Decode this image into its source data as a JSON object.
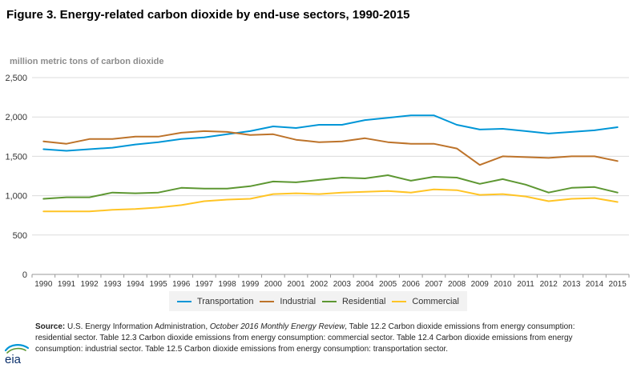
{
  "header": {
    "title": "Figure 3. Energy-related carbon dioxide by end-use sectors, 1990-2015",
    "unit_label": "million metric tons of carbon dioxide"
  },
  "source": {
    "label": "Source:",
    "text_a": " U.S. Energy Information Administration, ",
    "text_italic": "October 2016 Monthly Energy Review",
    "text_b": ", Table 12.2 Carbon dioxide emissions from energy consumption: residential sector. Table 12.3 Carbon dioxide emissions from energy consumption: commercial sector. Table 12.4 Carbon dioxide emissions from energy consumption: industrial sector. Table 12.5 Carbon dioxide emissions from energy consumption: transportation sector."
  },
  "logo": {
    "text": "eia"
  },
  "chart_data": {
    "type": "line",
    "title": "Figure 3. Energy-related carbon dioxide by end-use sectors, 1990-2015",
    "ylabel": "million metric tons of carbon dioxide",
    "xlabel": "",
    "ylim": [
      0,
      2500
    ],
    "yticks": [
      0,
      500,
      1000,
      1500,
      2000,
      2500
    ],
    "ytick_labels": [
      "0",
      "500",
      "1,000",
      "1,500",
      "2,000",
      "2,500"
    ],
    "grid": true,
    "legend_position": "bottom",
    "x": [
      "1990",
      "1991",
      "1992",
      "1993",
      "1994",
      "1995",
      "1996",
      "1997",
      "1998",
      "1999",
      "2000",
      "2001",
      "2002",
      "2003",
      "2004",
      "2005",
      "2006",
      "2007",
      "2008",
      "2009",
      "2010",
      "2011",
      "2012",
      "2013",
      "2014",
      "2015"
    ],
    "series": [
      {
        "name": "Transportation",
        "color": "#0096d7",
        "values": [
          1590,
          1570,
          1590,
          1610,
          1650,
          1680,
          1720,
          1740,
          1780,
          1820,
          1880,
          1860,
          1900,
          1900,
          1960,
          1990,
          2020,
          2020,
          1900,
          1840,
          1850,
          1820,
          1790,
          1810,
          1830,
          1870
        ]
      },
      {
        "name": "Industrial",
        "color": "#bd732a",
        "values": [
          1690,
          1660,
          1720,
          1720,
          1750,
          1750,
          1800,
          1820,
          1810,
          1770,
          1780,
          1710,
          1680,
          1690,
          1730,
          1680,
          1660,
          1660,
          1600,
          1390,
          1500,
          1490,
          1480,
          1500,
          1500,
          1440
        ]
      },
      {
        "name": "Residential",
        "color": "#5d9732",
        "values": [
          960,
          980,
          980,
          1040,
          1030,
          1040,
          1100,
          1090,
          1090,
          1120,
          1180,
          1170,
          1200,
          1230,
          1220,
          1260,
          1190,
          1240,
          1230,
          1150,
          1210,
          1140,
          1040,
          1100,
          1110,
          1040
        ]
      },
      {
        "name": "Commercial",
        "color": "#ffc425",
        "values": [
          800,
          800,
          800,
          820,
          830,
          850,
          880,
          930,
          950,
          960,
          1020,
          1030,
          1020,
          1040,
          1050,
          1060,
          1040,
          1080,
          1070,
          1010,
          1020,
          990,
          930,
          960,
          970,
          920
        ]
      }
    ]
  }
}
